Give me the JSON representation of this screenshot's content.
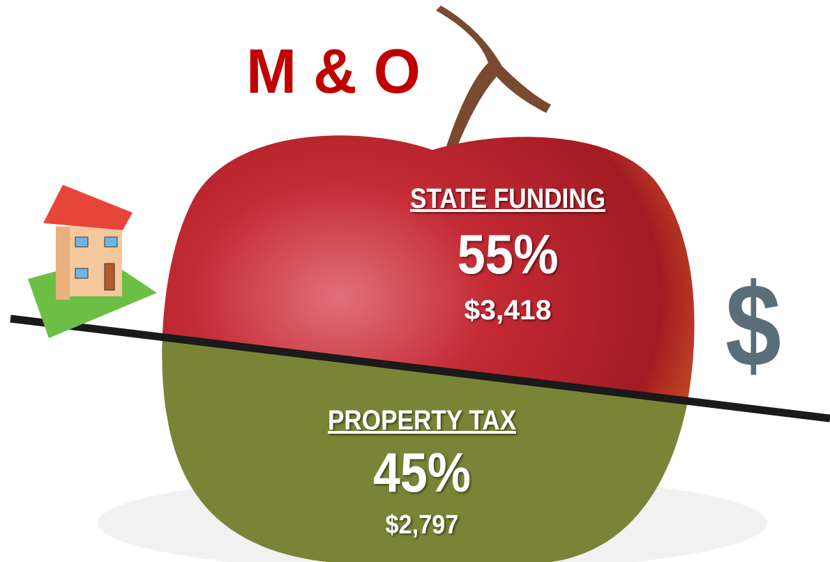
{
  "title": "M & O",
  "segments": [
    {
      "label": "STATE FUNDING",
      "percent": "55%",
      "amount": "$3,418"
    },
    {
      "label": "PROPERTY TAX",
      "percent": "45%",
      "amount": "$2,797"
    }
  ],
  "symbol": "$"
}
